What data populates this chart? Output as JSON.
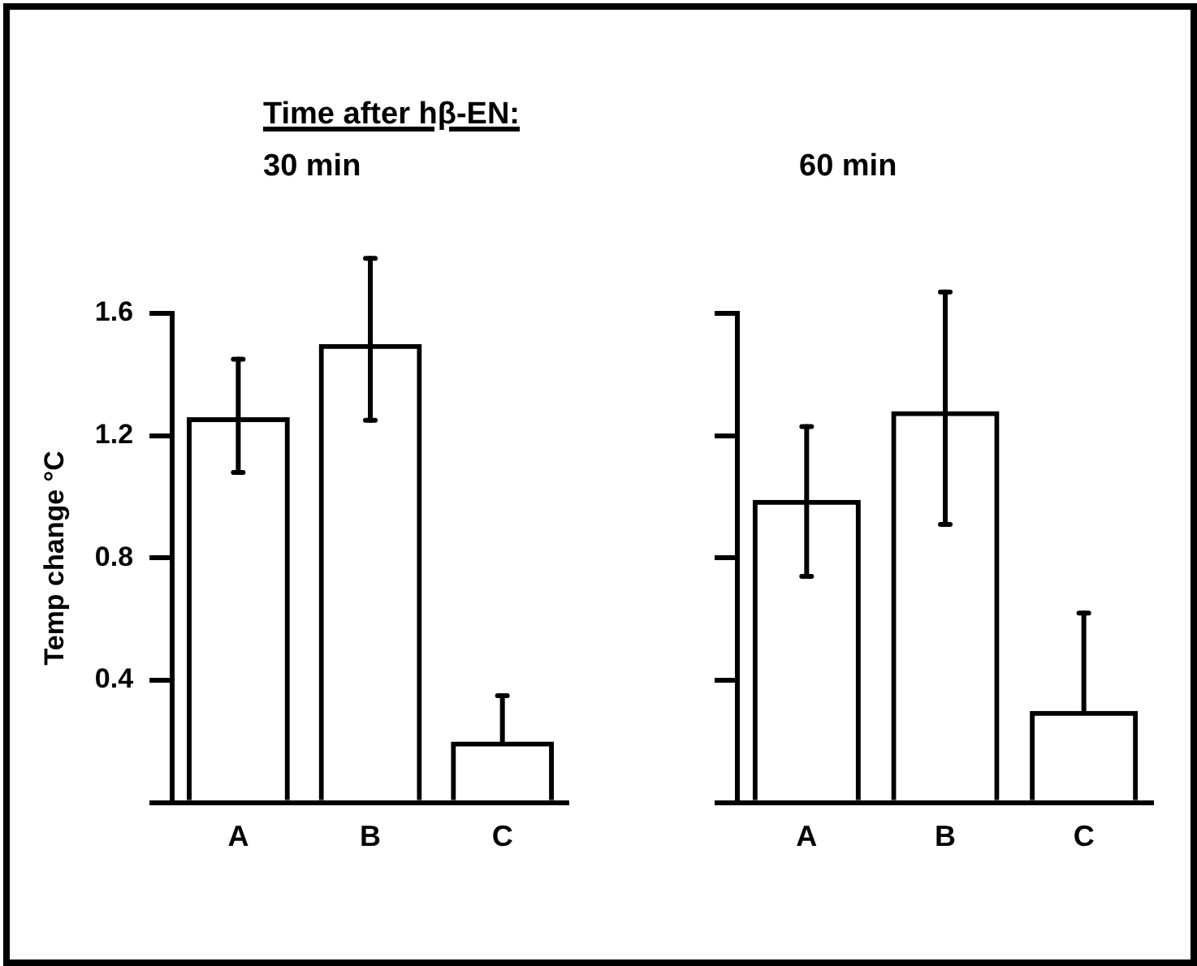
{
  "chart_data": [
    {
      "type": "bar",
      "title": "Time after hβ-EN:",
      "subtitle": "30 min",
      "ylabel": "Temp change °C",
      "categories": [
        "A",
        "B",
        "C"
      ],
      "values": [
        1.26,
        1.5,
        0.2
      ],
      "color": "#000000",
      "errors": [
        [
          1.08,
          1.45
        ],
        [
          1.25,
          1.78
        ],
        [
          0.2,
          0.35
        ]
      ],
      "ylim": [
        0,
        1.6
      ],
      "yticks": [
        {
          "value": 0,
          "label": null
        },
        0.4,
        0.8,
        1.2,
        1.6
      ]
    },
    {
      "type": "bar",
      "subtitle": "60 min",
      "categories": [
        "A",
        "B",
        "C"
      ],
      "values": [
        0.99,
        1.28,
        0.3
      ],
      "color": "#000000",
      "errors": [
        [
          0.74,
          1.23
        ],
        [
          0.91,
          1.67
        ],
        [
          0.3,
          0.62
        ]
      ],
      "ylim": [
        0,
        1.6
      ],
      "yticks": [
        {
          "value": 0,
          "label": null
        },
        0.4,
        0.8,
        1.2,
        1.6
      ],
      "tick_labels": "x"
    }
  ]
}
